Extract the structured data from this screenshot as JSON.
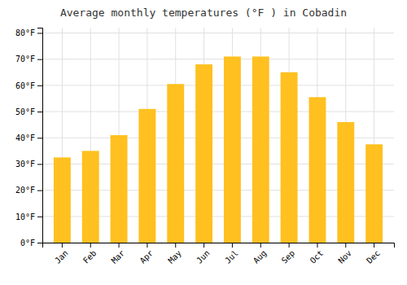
{
  "chart_data": {
    "type": "bar",
    "title": "Average monthly temperatures (°F ) in Cobadin",
    "categories": [
      "Jan",
      "Feb",
      "Mar",
      "Apr",
      "May",
      "Jun",
      "Jul",
      "Aug",
      "Sep",
      "Oct",
      "Nov",
      "Dec"
    ],
    "values": [
      32.5,
      35,
      41,
      51,
      60.5,
      68,
      71,
      71,
      65,
      55.5,
      46,
      37.5
    ],
    "color": "#FFC020",
    "ylim": [
      0,
      82
    ],
    "yticks": [
      {
        "value": 0,
        "label": "0°F"
      },
      {
        "value": 10,
        "label": "10°F"
      },
      {
        "value": 20,
        "label": "20°F"
      },
      {
        "value": 30,
        "label": "30°F"
      },
      {
        "value": 40,
        "label": "40°F"
      },
      {
        "value": 50,
        "label": "50°F"
      },
      {
        "value": 60,
        "label": "60°F"
      },
      {
        "value": 70,
        "label": "70°F"
      },
      {
        "value": 80,
        "label": "80°F"
      }
    ],
    "grid": true
  }
}
